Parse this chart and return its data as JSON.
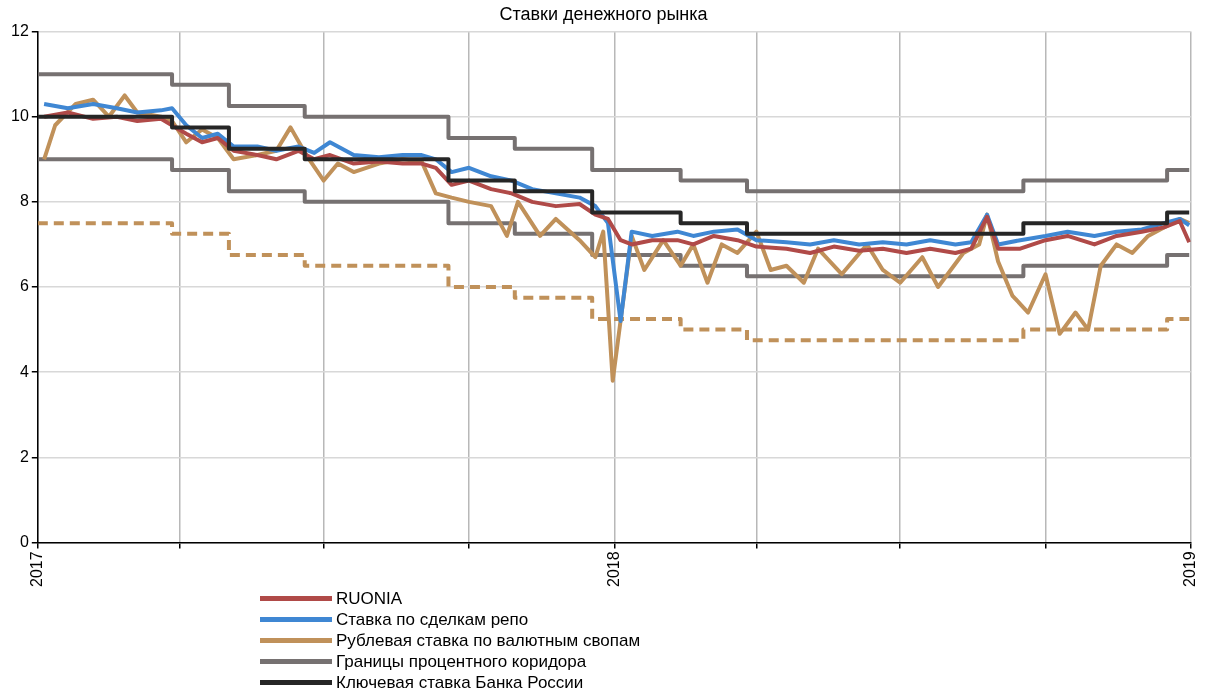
{
  "chart_data": {
    "type": "line",
    "title": "Ставки денежного рынка",
    "xlim": [
      "2017-01-01",
      "2019-01-01"
    ],
    "xticks": [
      {
        "value": "2017-01-01",
        "label": "2017"
      },
      {
        "value": "2017-04-01",
        "label": null
      },
      {
        "value": "2017-07-01",
        "label": null
      },
      {
        "value": "2017-10-01",
        "label": null
      },
      {
        "value": "2018-01-01",
        "label": "2018"
      },
      {
        "value": "2018-04-01",
        "label": null
      },
      {
        "value": "2018-07-01",
        "label": null
      },
      {
        "value": "2018-10-01",
        "label": null
      },
      {
        "value": "2019-01-01",
        "label": "2019"
      }
    ],
    "ylim": [
      0,
      12
    ],
    "yticks": [
      0,
      2,
      4,
      6,
      8,
      10,
      12
    ],
    "grid": true,
    "legend": "bottom",
    "marker": "none",
    "series": [
      {
        "name": "RUONIA",
        "color": "#b04a48",
        "type": "line",
        "x": [
          "2017-01-05",
          "2017-01-20",
          "2017-02-05",
          "2017-02-20",
          "2017-03-05",
          "2017-03-20",
          "2017-04-05",
          "2017-04-15",
          "2017-04-25",
          "2017-05-05",
          "2017-05-20",
          "2017-06-01",
          "2017-06-15",
          "2017-06-25",
          "2017-07-05",
          "2017-07-20",
          "2017-08-05",
          "2017-08-20",
          "2017-09-01",
          "2017-09-10",
          "2017-09-20",
          "2017-10-01",
          "2017-10-15",
          "2017-10-28",
          "2017-11-10",
          "2017-11-25",
          "2017-12-10",
          "2017-12-20",
          "2017-12-28",
          "2018-01-05",
          "2018-01-12",
          "2018-01-25",
          "2018-02-10",
          "2018-02-20",
          "2018-03-05",
          "2018-03-20",
          "2018-04-01",
          "2018-04-20",
          "2018-05-05",
          "2018-05-20",
          "2018-06-05",
          "2018-06-20",
          "2018-07-05",
          "2018-07-20",
          "2018-08-05",
          "2018-08-15",
          "2018-08-25",
          "2018-09-01",
          "2018-09-15",
          "2018-10-01",
          "2018-10-15",
          "2018-11-01",
          "2018-11-15",
          "2018-12-01",
          "2018-12-15",
          "2018-12-25",
          "2018-12-31"
        ],
        "values": [
          10.0,
          10.1,
          9.95,
          10.0,
          9.9,
          9.95,
          9.6,
          9.4,
          9.5,
          9.2,
          9.1,
          9.0,
          9.2,
          9.0,
          9.1,
          8.9,
          8.95,
          8.9,
          8.9,
          8.8,
          8.4,
          8.5,
          8.3,
          8.2,
          8.0,
          7.9,
          7.95,
          7.7,
          7.6,
          7.1,
          7.0,
          7.1,
          7.1,
          7.0,
          7.2,
          7.1,
          6.95,
          6.9,
          6.8,
          6.95,
          6.85,
          6.9,
          6.8,
          6.9,
          6.8,
          6.9,
          7.65,
          6.9,
          6.9,
          7.1,
          7.2,
          7.0,
          7.2,
          7.3,
          7.4,
          7.55,
          7.05
        ]
      },
      {
        "name": "Ставка по сделкам репо",
        "color": "#3f87d3",
        "type": "line",
        "x": [
          "2017-01-05",
          "2017-01-20",
          "2017-02-05",
          "2017-02-20",
          "2017-03-05",
          "2017-03-20",
          "2017-03-27",
          "2017-04-05",
          "2017-04-15",
          "2017-04-25",
          "2017-05-05",
          "2017-05-20",
          "2017-06-01",
          "2017-06-15",
          "2017-06-25",
          "2017-07-05",
          "2017-07-20",
          "2017-08-05",
          "2017-08-20",
          "2017-09-01",
          "2017-09-10",
          "2017-09-20",
          "2017-10-01",
          "2017-10-15",
          "2017-10-28",
          "2017-11-10",
          "2017-11-25",
          "2017-12-10",
          "2017-12-20",
          "2017-12-28",
          "2018-01-05",
          "2018-01-12",
          "2018-01-25",
          "2018-02-10",
          "2018-02-20",
          "2018-03-05",
          "2018-03-20",
          "2018-04-01",
          "2018-04-20",
          "2018-05-05",
          "2018-05-20",
          "2018-06-05",
          "2018-06-20",
          "2018-07-05",
          "2018-07-20",
          "2018-08-05",
          "2018-08-15",
          "2018-08-25",
          "2018-09-01",
          "2018-09-15",
          "2018-10-01",
          "2018-10-15",
          "2018-11-01",
          "2018-11-15",
          "2018-12-01",
          "2018-12-15",
          "2018-12-25",
          "2018-12-31"
        ],
        "values": [
          10.3,
          10.2,
          10.3,
          10.2,
          10.1,
          10.15,
          10.2,
          9.8,
          9.5,
          9.6,
          9.3,
          9.3,
          9.2,
          9.3,
          9.15,
          9.4,
          9.1,
          9.05,
          9.1,
          9.1,
          9.0,
          8.7,
          8.8,
          8.6,
          8.5,
          8.3,
          8.2,
          8.1,
          7.9,
          7.5,
          5.2,
          7.3,
          7.2,
          7.3,
          7.2,
          7.3,
          7.35,
          7.1,
          7.05,
          7.0,
          7.1,
          7.0,
          7.05,
          7.0,
          7.1,
          7.0,
          7.05,
          7.7,
          7.0,
          7.1,
          7.2,
          7.3,
          7.2,
          7.3,
          7.35,
          7.5,
          7.6,
          7.45
        ]
      },
      {
        "name": "Рублевая ставка по валютным свопам",
        "color": "#c0915a",
        "type": "line",
        "x": [
          "2017-01-05",
          "2017-01-12",
          "2017-01-25",
          "2017-02-05",
          "2017-02-15",
          "2017-02-25",
          "2017-03-05",
          "2017-03-20",
          "2017-03-27",
          "2017-04-05",
          "2017-04-15",
          "2017-04-25",
          "2017-05-05",
          "2017-05-20",
          "2017-06-01",
          "2017-06-10",
          "2017-06-20",
          "2017-07-01",
          "2017-07-10",
          "2017-07-20",
          "2017-08-05",
          "2017-08-20",
          "2017-09-01",
          "2017-09-10",
          "2017-09-20",
          "2017-10-01",
          "2017-10-15",
          "2017-10-25",
          "2017-11-01",
          "2017-11-15",
          "2017-11-25",
          "2017-12-10",
          "2017-12-20",
          "2017-12-25",
          "2017-12-31",
          "2018-01-12",
          "2018-01-20",
          "2018-02-01",
          "2018-02-12",
          "2018-02-20",
          "2018-03-01",
          "2018-03-10",
          "2018-03-20",
          "2018-04-01",
          "2018-04-10",
          "2018-04-20",
          "2018-05-01",
          "2018-05-10",
          "2018-05-25",
          "2018-06-10",
          "2018-06-20",
          "2018-07-01",
          "2018-07-15",
          "2018-07-25",
          "2018-08-10",
          "2018-08-20",
          "2018-08-25",
          "2018-09-01",
          "2018-09-10",
          "2018-09-20",
          "2018-10-01",
          "2018-10-10",
          "2018-10-20",
          "2018-10-28",
          "2018-11-05",
          "2018-11-15",
          "2018-11-25",
          "2018-12-05",
          "2018-12-15",
          "2018-12-25",
          "2018-12-31"
        ],
        "values": [
          9.0,
          9.8,
          10.3,
          10.4,
          10.0,
          10.5,
          10.1,
          10.0,
          9.9,
          9.4,
          9.7,
          9.5,
          9.0,
          9.1,
          9.2,
          9.75,
          9.1,
          8.5,
          8.9,
          8.7,
          8.9,
          9.0,
          8.95,
          8.2,
          8.1,
          8.0,
          7.9,
          7.2,
          8.0,
          7.2,
          7.6,
          7.1,
          6.7,
          7.3,
          3.8,
          7.2,
          6.4,
          7.1,
          6.5,
          7.0,
          6.1,
          7.0,
          6.8,
          7.3,
          6.4,
          6.5,
          6.1,
          6.9,
          6.3,
          7.0,
          6.4,
          6.1,
          6.7,
          6.0,
          6.8,
          7.0,
          7.7,
          6.6,
          5.8,
          5.4,
          6.3,
          4.9,
          5.4,
          5.0,
          6.5,
          7.0,
          6.8,
          7.2,
          7.4,
          7.6,
          7.5
        ]
      },
      {
        "name": "Границы процентного коридора",
        "color": "#767171",
        "type": "step",
        "x": [
          "2017-01-01",
          "2017-03-27",
          "2017-05-02",
          "2017-06-19",
          "2017-09-18",
          "2017-10-30",
          "2017-12-18",
          "2018-02-12",
          "2018-03-26",
          "2018-09-17",
          "2018-12-17",
          "2018-12-31"
        ],
        "values": [
          11,
          10.75,
          10.25,
          10,
          9.5,
          9.25,
          8.75,
          8.5,
          8.25,
          8.5,
          8.75,
          8.75
        ]
      },
      {
        "color": "#767171",
        "type": "step",
        "x": [
          "2017-01-01",
          "2017-03-27",
          "2017-05-02",
          "2017-06-19",
          "2017-09-18",
          "2017-10-30",
          "2017-12-18",
          "2018-02-12",
          "2018-03-26",
          "2018-09-17",
          "2018-12-17",
          "2018-12-31"
        ],
        "values": [
          9,
          8.75,
          8.25,
          8,
          7.5,
          7.25,
          6.75,
          6.5,
          6.25,
          6.5,
          6.75,
          6.75
        ]
      },
      {
        "name": "Ключевая ставка Банка России",
        "color": "#262626",
        "type": "step",
        "x": [
          "2017-01-01",
          "2017-03-27",
          "2017-05-02",
          "2017-06-19",
          "2017-09-18",
          "2017-10-30",
          "2017-12-18",
          "2018-02-12",
          "2018-03-26",
          "2018-09-17",
          "2018-12-17",
          "2018-12-31"
        ],
        "values": [
          10,
          9.75,
          9.25,
          9,
          8.5,
          8.25,
          7.75,
          7.5,
          7.25,
          7.5,
          7.75,
          7.75
        ]
      },
      {
        "color": "#c0915a",
        "type": "step",
        "line_style": "dashed",
        "x": [
          "2017-01-01",
          "2017-03-27",
          "2017-05-02",
          "2017-06-19",
          "2017-09-18",
          "2017-10-30",
          "2017-12-18",
          "2018-02-12",
          "2018-03-26",
          "2018-09-17",
          "2018-12-17",
          "2018-12-31"
        ],
        "values": [
          7.5,
          7.25,
          6.75,
          6.5,
          6,
          5.75,
          5.25,
          5,
          4.75,
          5,
          5.25,
          5.25
        ]
      }
    ]
  }
}
